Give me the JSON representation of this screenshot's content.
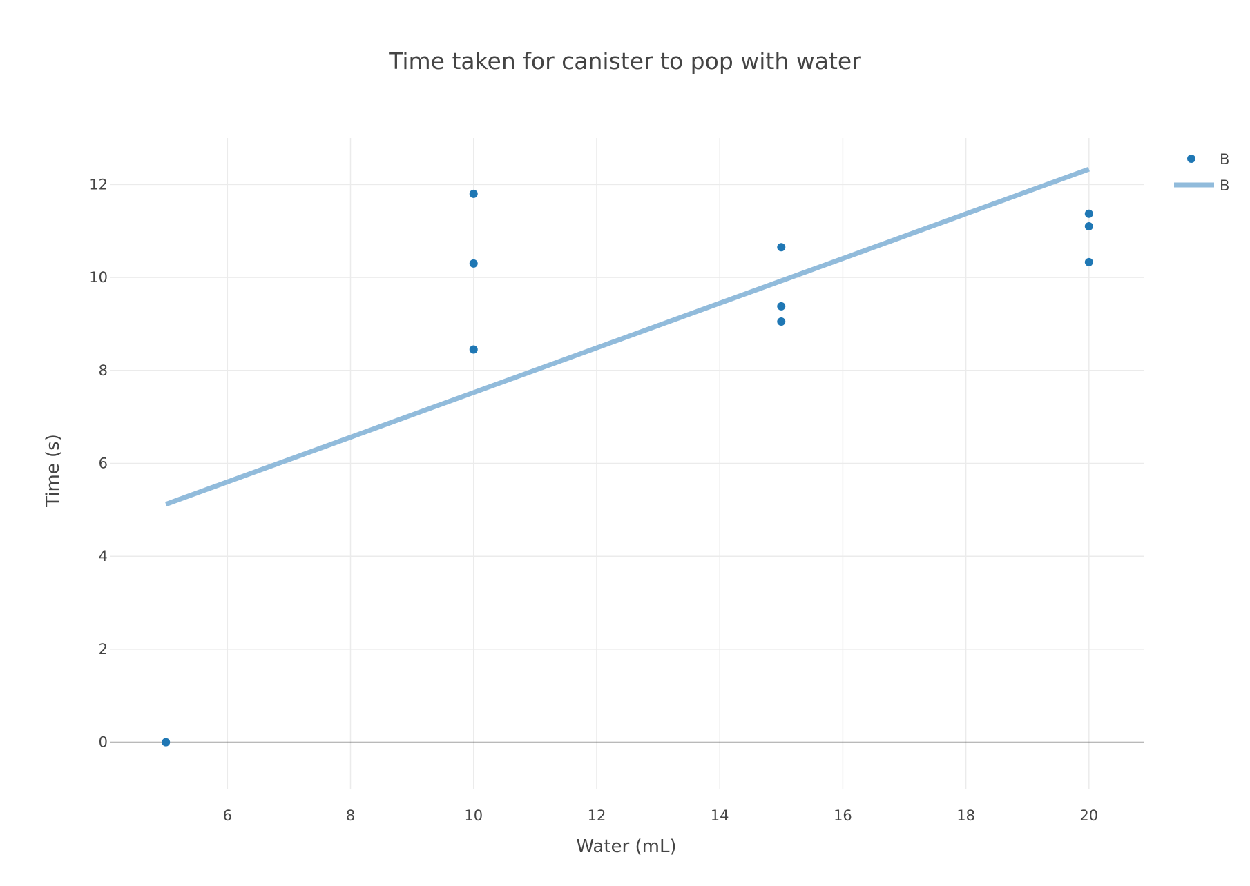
{
  "chart_data": {
    "type": "scatter",
    "title": "Time taken for canister to pop with water",
    "xlabel": "Water (mL)",
    "ylabel": "Time (s)",
    "xlim": [
      4.1,
      20.9
    ],
    "ylim": [
      -1.0,
      13.0
    ],
    "x_ticks": [
      6,
      8,
      10,
      12,
      14,
      16,
      18,
      20
    ],
    "y_ticks": [
      0,
      2,
      4,
      6,
      8,
      10,
      12
    ],
    "grid": true,
    "legend_position": "top-right",
    "series": [
      {
        "name": "B",
        "mode": "markers",
        "color": "#1f77b4",
        "x": [
          5,
          10,
          10,
          10,
          15,
          15,
          15,
          20,
          20,
          20
        ],
        "y": [
          0,
          11.8,
          10.3,
          8.45,
          10.65,
          9.38,
          9.05,
          11.37,
          11.1,
          10.33
        ]
      },
      {
        "name": "B",
        "mode": "lines",
        "color": "#91bbdb",
        "x": [
          5,
          20
        ],
        "y": [
          5.12,
          12.33
        ]
      }
    ]
  }
}
